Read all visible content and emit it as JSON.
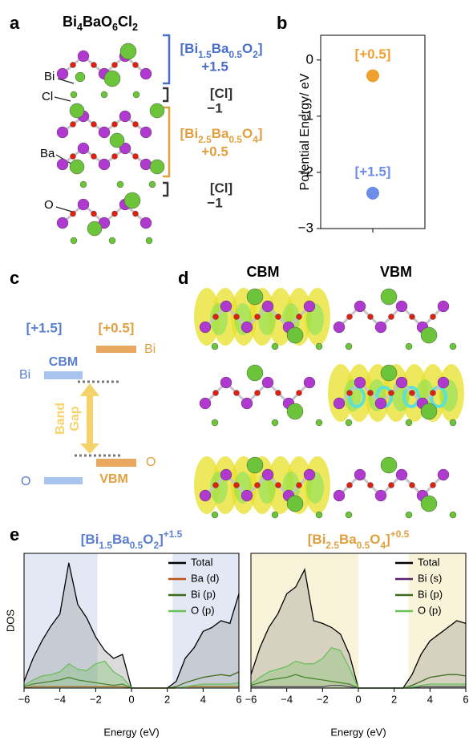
{
  "panel_labels": [
    "a",
    "b",
    "c",
    "d",
    "e"
  ],
  "panel_a": {
    "formula": [
      "Bi",
      "4",
      "BaO",
      "6",
      "Cl",
      "2"
    ],
    "atom_labels": [
      "Bi",
      "Cl",
      "Ba",
      "O"
    ],
    "layers": [
      {
        "formula": [
          "[Bi",
          "1.5",
          "Ba",
          "0.5",
          "O",
          "2",
          "]"
        ],
        "charge": "+1.5",
        "color": "#4a6fc9"
      },
      {
        "formula": [
          "[Cl]"
        ],
        "charge": "−1",
        "color": "#333333"
      },
      {
        "formula": [
          "[Bi",
          "2.5",
          "Ba",
          "0.5",
          "O",
          "4",
          "]"
        ],
        "charge": "+0.5",
        "color": "#e0a040"
      },
      {
        "formula": [
          "[Cl]"
        ],
        "charge": "−1",
        "color": "#333333"
      }
    ]
  },
  "panel_c": {
    "headers": [
      "[+1.5]",
      "[+0.5]"
    ],
    "cbm": "CBM",
    "vbm": "VBM",
    "bi_left": "Bi",
    "bi_right": "Bi",
    "o_left": "O",
    "o_right": "O",
    "band_gap": [
      "Band",
      "Gap"
    ]
  },
  "panel_d": {
    "columns": [
      "CBM",
      "VBM"
    ]
  },
  "chart_data": [
    {
      "type": "scatter",
      "ylabel": "Potential Energy/ eV",
      "categories": [
        null
      ],
      "ylim": [
        -3,
        0.44
      ],
      "yticks": [
        0,
        {
          "value": -1,
          "label": "−1"
        },
        {
          "value": -2,
          "label": "−2"
        },
        {
          "value": -3,
          "label": "−3"
        }
      ],
      "series": [
        {
          "name": "[+0.5]",
          "color": "#f0a030",
          "values": [
            -0.28
          ]
        },
        {
          "name": "[+1.5]",
          "color": "#6d8ee8",
          "values": [
            -2.37
          ]
        }
      ]
    },
    {
      "type": "line",
      "title": [
        "[Bi",
        "1.5",
        "Ba",
        "0.5",
        "O",
        "2",
        "]",
        "+1.5"
      ],
      "title_color": "#5a7fd0",
      "xlabel": "Energy (eV)",
      "ylabel": "DOS",
      "x": [
        -6,
        -5.5,
        -5,
        -4.5,
        -4,
        -3.5,
        -3,
        -2.5,
        -2,
        -1.5,
        -1,
        -0.5,
        0,
        0.5,
        1,
        1.5,
        2,
        2.5,
        3,
        3.5,
        4,
        4.5,
        5,
        5.5,
        6
      ],
      "xlim": [
        -6,
        6
      ],
      "xticks": [
        {
          "value": -6,
          "label": "−6"
        },
        {
          "value": -4,
          "label": "−4"
        },
        {
          "value": -2,
          "label": "−2"
        },
        0,
        2,
        4,
        6
      ],
      "ylim": [
        0,
        100
      ],
      "shaded": [
        [
          -6,
          -1.9
        ],
        [
          2.3,
          6
        ]
      ],
      "shade_color": "#e3e8f5",
      "legend": "upper right",
      "series": [
        {
          "name": "Total",
          "color": "#000000",
          "filled": true,
          "values": [
            5,
            22,
            35,
            46,
            55,
            93,
            62,
            52,
            38,
            28,
            22,
            25,
            0,
            0,
            0,
            0,
            0,
            5,
            22,
            30,
            42,
            45,
            50,
            48,
            70
          ]
        },
        {
          "name": "Ba (d)",
          "color": "#c0501a",
          "values": [
            0,
            1,
            1,
            1,
            1,
            1,
            1,
            1,
            1,
            1,
            1,
            1,
            0,
            0,
            0,
            0,
            0,
            0,
            1,
            1,
            1,
            1,
            1,
            1,
            1
          ]
        },
        {
          "name": "Bi (p)",
          "color": "#3d6b1c",
          "values": [
            1,
            3,
            4,
            5,
            6,
            8,
            6,
            5,
            4,
            3,
            2,
            3,
            0,
            0,
            0,
            0,
            0,
            1,
            4,
            6,
            8,
            9,
            10,
            9,
            12
          ]
        },
        {
          "name": "O (p)",
          "color": "#6cc05c",
          "filled": true,
          "values": [
            2,
            6,
            9,
            10,
            12,
            18,
            14,
            13,
            18,
            20,
            12,
            8,
            0,
            0,
            0,
            0,
            0,
            0,
            1,
            2,
            3,
            3,
            3,
            3,
            4
          ]
        }
      ]
    },
    {
      "type": "line",
      "title": [
        "[Bi",
        "2.5",
        "Ba",
        "0.5",
        "O",
        "4",
        "]",
        "+0.5"
      ],
      "title_color": "#e0a040",
      "xlabel": "Energy (eV)",
      "x": [
        -6,
        -5.5,
        -5,
        -4.5,
        -4,
        -3.5,
        -3,
        -2.5,
        -2,
        -1.5,
        -1,
        -0.5,
        0,
        0.5,
        1,
        1.5,
        2,
        2.5,
        3,
        3.5,
        4,
        4.5,
        5,
        5.5,
        6
      ],
      "xlim": [
        -6,
        6
      ],
      "xticks": [
        {
          "value": -6,
          "label": "−6"
        },
        {
          "value": -4,
          "label": "−4"
        },
        {
          "value": -2,
          "label": "−2"
        },
        0,
        2,
        4,
        6
      ],
      "ylim": [
        0,
        100
      ],
      "shaded": [
        [
          -6,
          0
        ],
        [
          2.8,
          6
        ]
      ],
      "shade_color": "#f9f3d9",
      "legend": "upper right",
      "series": [
        {
          "name": "Total",
          "color": "#000000",
          "filled": true,
          "values": [
            10,
            30,
            45,
            55,
            70,
            75,
            88,
            50,
            48,
            45,
            40,
            25,
            0,
            0,
            0,
            0,
            0,
            0,
            10,
            25,
            35,
            40,
            45,
            50,
            48
          ]
        },
        {
          "name": "Bi (s)",
          "color": "#5b1f6b",
          "values": [
            1,
            1,
            1,
            1,
            1,
            1,
            1,
            1,
            1,
            2,
            2,
            1,
            0,
            0,
            0,
            0,
            0,
            0,
            0,
            1,
            1,
            1,
            1,
            1,
            1
          ]
        },
        {
          "name": "Bi (p)",
          "color": "#3d6b1c",
          "values": [
            2,
            4,
            6,
            7,
            8,
            10,
            8,
            7,
            6,
            5,
            4,
            3,
            0,
            0,
            0,
            0,
            0,
            0,
            2,
            5,
            8,
            9,
            10,
            10,
            9
          ]
        },
        {
          "name": "O (p)",
          "color": "#6cc05c",
          "filled": true,
          "values": [
            3,
            8,
            12,
            14,
            16,
            20,
            18,
            18,
            22,
            30,
            28,
            15,
            0,
            0,
            0,
            0,
            0,
            0,
            1,
            2,
            3,
            3,
            3,
            3,
            3
          ]
        }
      ]
    }
  ]
}
